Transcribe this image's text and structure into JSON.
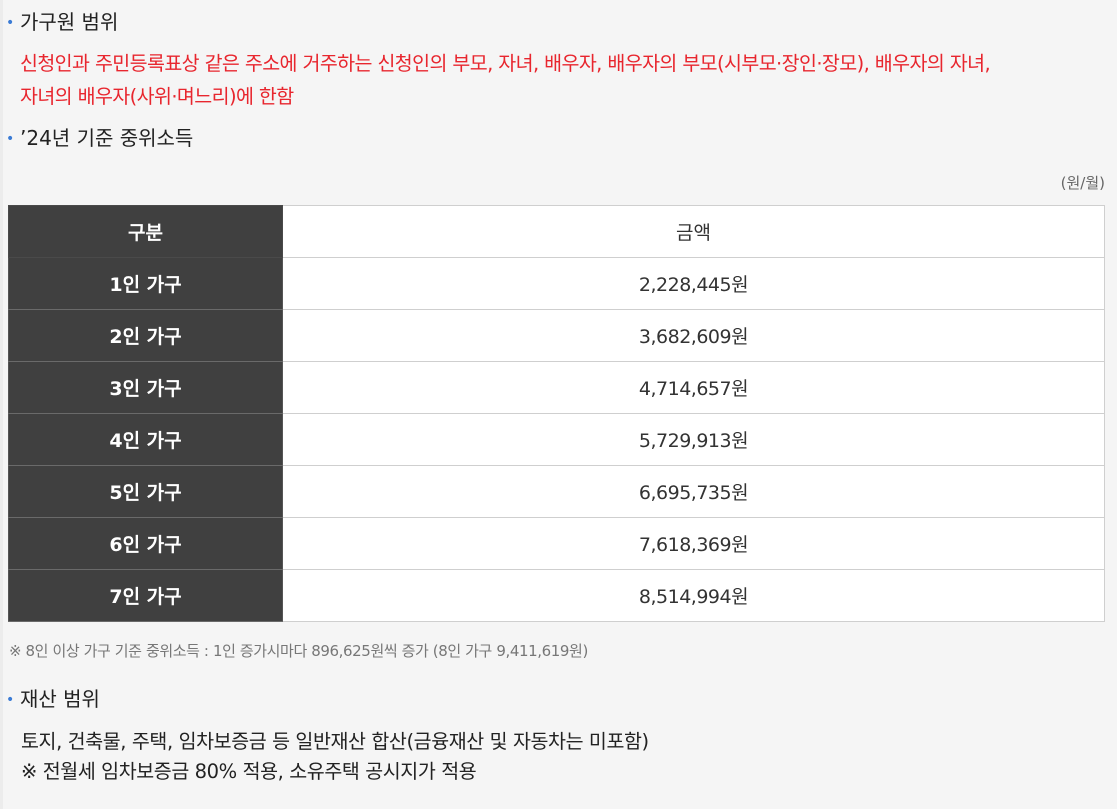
{
  "household_scope": {
    "heading": "가구원 범위",
    "description_line1": "신청인과 주민등록표상 같은 주소에 거주하는 신청인의 부모, 자녀, 배우자, 배우자의 부모(시부모·장인·장모), 배우자의 자녀,",
    "description_line2": "자녀의 배우자(사위·며느리)에 한함"
  },
  "median_income": {
    "heading": "’24년 기준 중위소득",
    "unit": "(원/월)",
    "table": {
      "header_category": "구분",
      "header_amount": "금액",
      "rows": [
        {
          "label": "1인 가구",
          "amount": "2,228,445원"
        },
        {
          "label": "2인 가구",
          "amount": "3,682,609원"
        },
        {
          "label": "3인 가구",
          "amount": "4,714,657원"
        },
        {
          "label": "4인 가구",
          "amount": "5,729,913원"
        },
        {
          "label": "5인 가구",
          "amount": "6,695,735원"
        },
        {
          "label": "6인 가구",
          "amount": "7,618,369원"
        },
        {
          "label": "7인 가구",
          "amount": "8,514,994원"
        }
      ]
    },
    "note": "※ 8인 이상 가구 기준 중위소득 : 1인 증가시마다 896,625원씩 증가 (8인 가구 9,411,619원)"
  },
  "asset_scope": {
    "heading": "재산 범위",
    "line1": "토지, 건축물, 주택, 임차보증금 등 일반재산 합산(금융재산 및 자동차는 미포함)",
    "line2": "※ 전월세 임차보증금 80% 적용, 소유주택 공시지가 적용"
  },
  "colors": {
    "bullet": "#3a7bd5",
    "highlight_text": "#e8262e",
    "table_header_bg": "#404040"
  }
}
